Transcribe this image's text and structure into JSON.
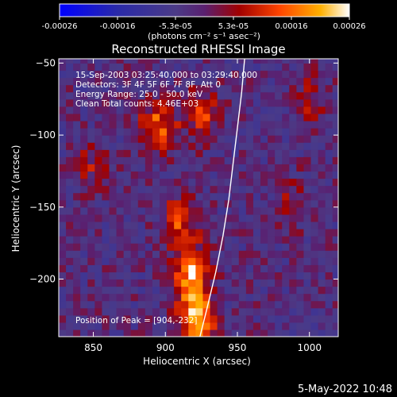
{
  "chart_data": {
    "type": "heatmap",
    "title": "Reconstructed RHESSI Image",
    "xlabel": "Heliocentric X (arcsec)",
    "ylabel": "Heliocentric Y (arcsec)",
    "xlim": [
      826,
      1020
    ],
    "ylim": [
      -240,
      -47
    ],
    "x_ticks": [
      850,
      900,
      950,
      1000
    ],
    "y_ticks": [
      -50,
      -100,
      -150,
      -200
    ],
    "colorbar": {
      "range": [
        -0.00026,
        0.00026
      ],
      "ticks": [
        "-0.00026",
        "-0.00016",
        "-5.3e-05",
        "5.3e-05",
        "0.00016",
        "0.00026"
      ],
      "label": "(photons cm⁻² s⁻¹ asec⁻²)"
    },
    "info_lines": [
      "15-Sep-2003 03:25:40.000 to 03:29:40.000",
      "Detectors: 3F 4F 5F 6F 7F 8F, Att 0",
      "Energy Range: 25.0 - 50.0 keV",
      "Clean      Total counts: 4.46E+03"
    ],
    "peak_label": "Position of Peak = [904,-232]",
    "peak_position": [
      904,
      -232
    ],
    "date_stamp": "5-May-2022 10:48",
    "limb_curve": [
      [
        955,
        -47
      ],
      [
        953,
        -70
      ],
      [
        950,
        -95
      ],
      [
        947,
        -120
      ],
      [
        944,
        -145
      ],
      [
        940,
        -170
      ],
      [
        935,
        -195
      ],
      [
        929,
        -220
      ],
      [
        924,
        -240
      ]
    ],
    "emission_sources": [
      {
        "x": 922,
        "y": -225,
        "intensity": 0.00026
      },
      {
        "x": 918,
        "y": -195,
        "intensity": 0.00022
      },
      {
        "x": 910,
        "y": -160,
        "intensity": 0.00015
      },
      {
        "x": 895,
        "y": -95,
        "intensity": 0.00018
      },
      {
        "x": 925,
        "y": -85,
        "intensity": 0.00014
      },
      {
        "x": 850,
        "y": -120,
        "intensity": 8e-05
      },
      {
        "x": 1000,
        "y": -75,
        "intensity": 9e-05
      },
      {
        "x": 990,
        "y": -145,
        "intensity": 7e-05
      }
    ]
  }
}
